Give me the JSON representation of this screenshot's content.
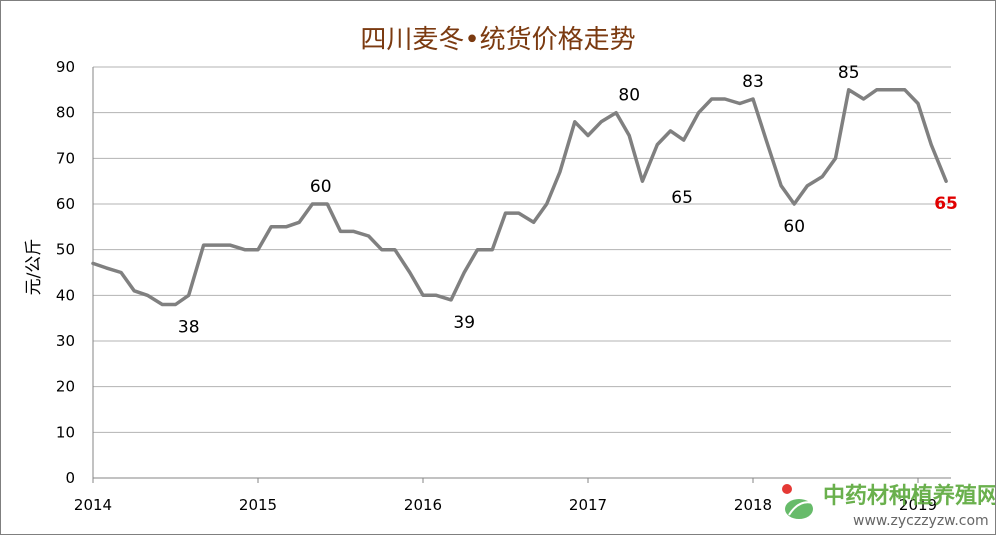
{
  "chart_data": {
    "type": "line",
    "title": "四川麦冬•统货价格走势",
    "ylabel": "元/公斤",
    "xlabel": "",
    "ylim": [
      0,
      90
    ],
    "yticks": [
      0,
      10,
      20,
      30,
      40,
      50,
      60,
      70,
      80,
      90
    ],
    "xlim": [
      2014,
      2019.2
    ],
    "xticks": [
      "2014",
      "2015",
      "2016",
      "2017",
      "2018",
      "2019"
    ],
    "grid": true,
    "series": [
      {
        "name": "",
        "color": "#808080",
        "x": [
          2014.0,
          2014.08,
          2014.17,
          2014.25,
          2014.33,
          2014.42,
          2014.5,
          2014.58,
          2014.67,
          2014.75,
          2014.83,
          2014.92,
          2015.0,
          2015.08,
          2015.17,
          2015.25,
          2015.33,
          2015.42,
          2015.5,
          2015.58,
          2015.67,
          2015.75,
          2015.83,
          2015.92,
          2016.0,
          2016.08,
          2016.17,
          2016.25,
          2016.33,
          2016.42,
          2016.5,
          2016.58,
          2016.67,
          2016.75,
          2016.83,
          2016.92,
          2017.0,
          2017.08,
          2017.17,
          2017.25,
          2017.33,
          2017.42,
          2017.5,
          2017.58,
          2017.67,
          2017.75,
          2017.83,
          2017.92,
          2018.0,
          2018.08,
          2018.17,
          2018.25,
          2018.33,
          2018.42,
          2018.5,
          2018.58,
          2018.67,
          2018.75,
          2018.83,
          2018.92,
          2019.0,
          2019.08,
          2019.17
        ],
        "y": [
          47,
          46,
          45,
          41,
          40,
          38,
          38,
          40,
          51,
          51,
          51,
          50,
          50,
          55,
          55,
          56,
          60,
          60,
          54,
          54,
          53,
          50,
          50,
          45,
          40,
          40,
          39,
          45,
          50,
          50,
          58,
          58,
          56,
          60,
          67,
          78,
          75,
          78,
          80,
          75,
          65,
          73,
          76,
          74,
          80,
          83,
          83,
          82,
          83,
          74,
          64,
          60,
          64,
          66,
          70,
          85,
          83,
          85,
          85,
          85,
          82,
          73,
          65
        ]
      }
    ],
    "annotations": [
      {
        "text": "38",
        "x": 2014.58,
        "y": 38,
        "pos": "below"
      },
      {
        "text": "60",
        "x": 2015.38,
        "y": 60,
        "pos": "above"
      },
      {
        "text": "39",
        "x": 2016.25,
        "y": 39,
        "pos": "below"
      },
      {
        "text": "80",
        "x": 2017.25,
        "y": 80,
        "pos": "above"
      },
      {
        "text": "65",
        "x": 2017.42,
        "y": 65,
        "pos": "right"
      },
      {
        "text": "83",
        "x": 2018.0,
        "y": 83,
        "pos": "above"
      },
      {
        "text": "60",
        "x": 2018.25,
        "y": 60,
        "pos": "below"
      },
      {
        "text": "85",
        "x": 2018.58,
        "y": 85,
        "pos": "above"
      },
      {
        "text": "65",
        "x": 2019.17,
        "y": 65,
        "pos": "below",
        "highlight": "#e00000"
      }
    ]
  },
  "watermark": {
    "text": "中药材种植养殖网",
    "url": "www.zyczzyzw.com",
    "icon": "leaf-logo-icon"
  }
}
